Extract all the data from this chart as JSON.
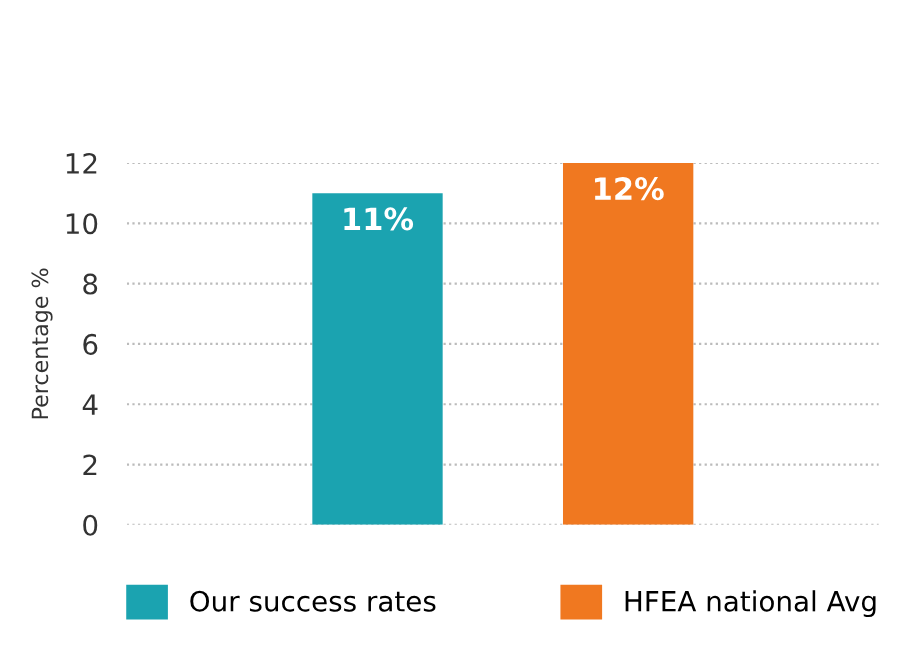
{
  "chart_data": {
    "type": "bar",
    "ylabel": "Percentage %",
    "categories": [
      null,
      null
    ],
    "series": [
      {
        "name": "Our success rates",
        "color": "#1ba3b0",
        "values": [
          11,
          null
        ],
        "value_labels": [
          "11%",
          null
        ]
      },
      {
        "name": "HFEA national Avg",
        "color": "#f07820",
        "values": [
          null,
          12
        ],
        "value_labels": [
          null,
          "12%"
        ]
      }
    ],
    "ylim": [
      0,
      12
    ],
    "yticks": [
      0,
      2,
      4,
      6,
      8,
      10,
      12
    ],
    "grid": "y",
    "legend": "bottom"
  }
}
